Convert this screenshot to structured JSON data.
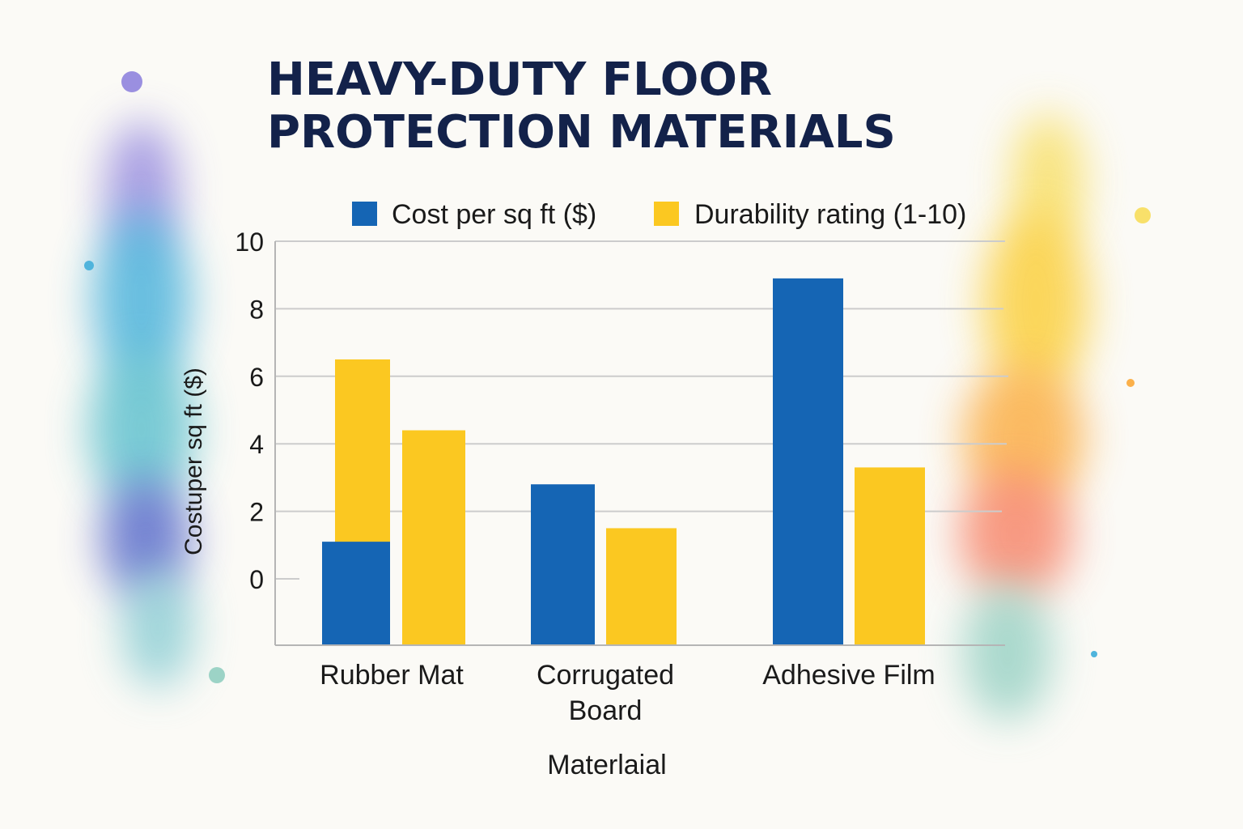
{
  "chart_data": {
    "type": "bar",
    "title_lines": [
      "HEAVY-DUTY FLOOR",
      "PROTECTION MATERIALS"
    ],
    "xlabel": "Materlaial",
    "ylabel": "Costuper sq ft ($)",
    "categories": [
      "Rubber Mat",
      "Corrugated Board",
      "Adhesive Film"
    ],
    "series": [
      {
        "name": "Cost per sq ft ($)",
        "color": "#1565b4",
        "values": [
          1.1,
          2.8,
          8.9
        ]
      },
      {
        "name": "Durability rating (1-10)",
        "color": "#fbc821",
        "values": [
          6.5,
          1.5,
          3.3
        ]
      }
    ],
    "extra_bars": [
      {
        "category": "Rubber Mat",
        "color": "#fbc821",
        "value": 4.4
      }
    ],
    "y_ticks": [
      0,
      2,
      4,
      6,
      8,
      10
    ],
    "ylim": [
      -2,
      10
    ],
    "grid": true,
    "legend_position": "top"
  },
  "colors": {
    "title": "#13224a",
    "axis_text": "#1a1a1a",
    "grid": "#cccccc",
    "background": "#fbfaf6"
  }
}
